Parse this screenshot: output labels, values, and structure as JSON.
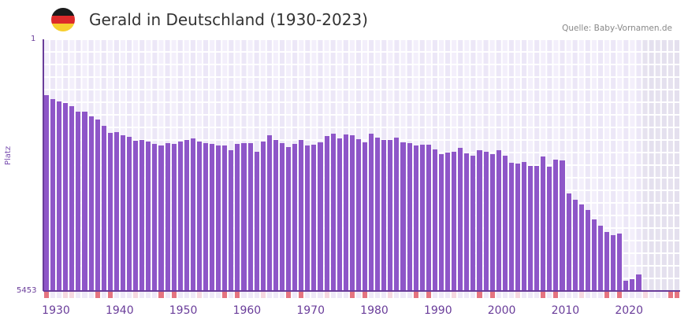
{
  "header": {
    "title": "Gerald in Deutschland (1930-2023)",
    "source": "Quelle: Baby-Vornamen.de",
    "flag_colors": [
      "#1a1a1a",
      "#dd2a2a",
      "#f7cf2e"
    ]
  },
  "axis": {
    "y_top_label": "1",
    "y_bottom_label": "5453",
    "y_title": "Platz"
  },
  "colors": {
    "bar": "#8e56c8",
    "axis": "#6a3d9a",
    "grid_light": "#f3effb",
    "grid_dark": "#ece7f7",
    "future_bg": "#e4e0ee",
    "tick_decade": "#e57480",
    "tick_mid": "#f6d8e0",
    "tick_normal": "#efeaf8"
  },
  "chart_data": {
    "type": "bar",
    "title": "Gerald in Deutschland (1930-2023)",
    "xlabel": "",
    "ylabel": "Platz",
    "y_inverted": true,
    "ylim": [
      1,
      5453
    ],
    "x_range": [
      1930,
      2029
    ],
    "x_ticks": [
      "1930",
      "1940",
      "1950",
      "1960",
      "1970",
      "1980",
      "1990",
      "2000",
      "2010",
      "2020"
    ],
    "grid": true,
    "categories": [
      1930,
      1931,
      1932,
      1933,
      1934,
      1935,
      1936,
      1937,
      1938,
      1939,
      1940,
      1941,
      1942,
      1943,
      1944,
      1945,
      1946,
      1947,
      1948,
      1949,
      1950,
      1951,
      1952,
      1953,
      1954,
      1955,
      1956,
      1957,
      1958,
      1959,
      1960,
      1961,
      1962,
      1963,
      1964,
      1965,
      1966,
      1967,
      1968,
      1969,
      1970,
      1971,
      1972,
      1973,
      1974,
      1975,
      1976,
      1977,
      1978,
      1979,
      1980,
      1981,
      1982,
      1983,
      1984,
      1985,
      1986,
      1987,
      1988,
      1989,
      1990,
      1991,
      1992,
      1993,
      1994,
      1995,
      1996,
      1997,
      1998,
      1999,
      2000,
      2001,
      2002,
      2003,
      2004,
      2005,
      2006,
      2007,
      2008,
      2009,
      2010,
      2011,
      2012,
      2013,
      2014,
      2015,
      2016,
      2017,
      2018,
      2019,
      2020,
      2021,
      2022,
      2023
    ],
    "values": [
      1209,
      1295,
      1346,
      1380,
      1448,
      1567,
      1567,
      1669,
      1737,
      1874,
      2027,
      2010,
      2078,
      2112,
      2197,
      2180,
      2214,
      2265,
      2299,
      2248,
      2265,
      2214,
      2180,
      2146,
      2214,
      2248,
      2265,
      2299,
      2299,
      2401,
      2265,
      2248,
      2248,
      2435,
      2214,
      2078,
      2180,
      2248,
      2333,
      2265,
      2180,
      2299,
      2282,
      2231,
      2095,
      2044,
      2146,
      2061,
      2078,
      2163,
      2231,
      2044,
      2129,
      2180,
      2180,
      2129,
      2231,
      2248,
      2299,
      2282,
      2282,
      2384,
      2486,
      2452,
      2435,
      2350,
      2469,
      2520,
      2401,
      2435,
      2486,
      2401,
      2520,
      2673,
      2690,
      2656,
      2741,
      2741,
      2537,
      2758,
      2605,
      2622,
      3338,
      3474,
      3576,
      3695,
      3900,
      4036,
      4172,
      4240,
      4206,
      5228,
      5194,
      5092
    ]
  }
}
